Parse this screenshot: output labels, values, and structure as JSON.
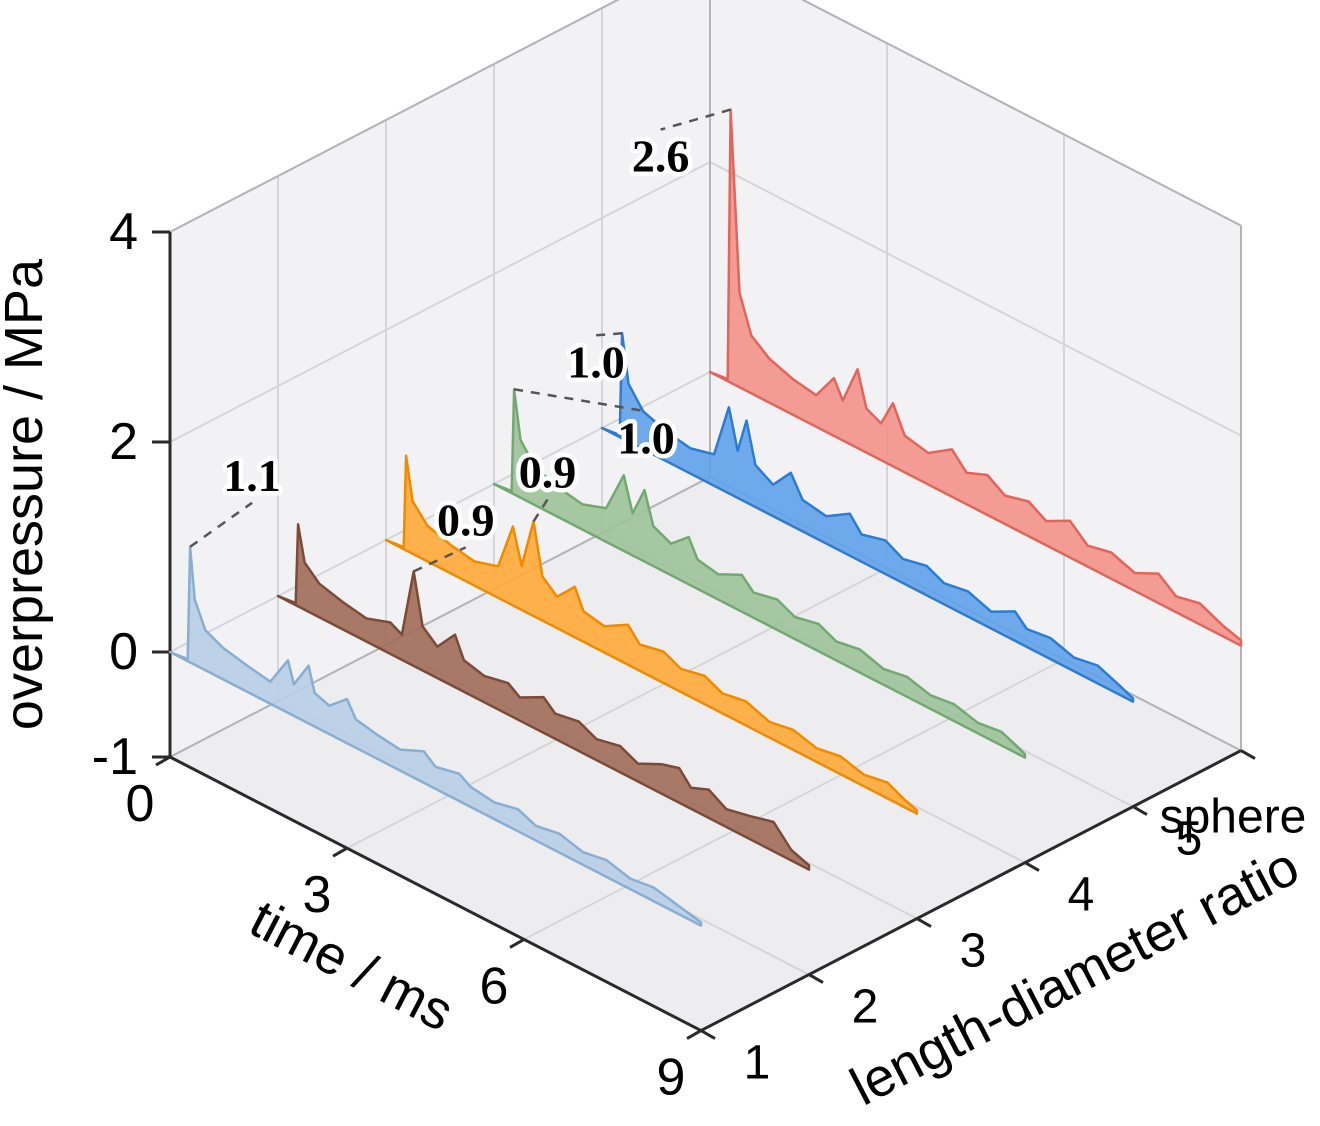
{
  "chart_data": {
    "type": "line",
    "subtype": "3d-waterfall-overpressure-traces",
    "title": "",
    "xlabel": "time / ms",
    "ylabel": "length-diameter ratio",
    "zlabel": "overpressure / MPa",
    "x_ticks": [
      "0",
      "3",
      "6",
      "9"
    ],
    "x_tick_values": [
      0,
      3,
      6,
      9
    ],
    "x_range": [
      0,
      9
    ],
    "y_tick_labels": [
      "1",
      "2",
      "3",
      "4",
      "5",
      "sphere"
    ],
    "z_ticks": [
      "-1",
      "0",
      "2",
      "4"
    ],
    "z_tick_values": [
      -1,
      0,
      2,
      4
    ],
    "z_range": [
      -1,
      4
    ],
    "grid": true,
    "legend": "none",
    "colors": {
      "pane_wall": "#f2f2f4",
      "pane_floor": "#ededf0",
      "grid": "#d6d6da",
      "box_edge": "#b3b3b8",
      "spine": "#2a2a2a",
      "annotation_line": "#555555",
      "text": "#000000"
    },
    "series": [
      {
        "name": "1",
        "peak_label": "1.1",
        "color_fill": "#b7cde6",
        "color_edge": "#89aed2",
        "points": [
          [
            0,
            0
          ],
          [
            0.3,
            0.02
          ],
          [
            0.34,
            1.1
          ],
          [
            0.42,
            0.62
          ],
          [
            0.6,
            0.38
          ],
          [
            0.9,
            0.3
          ],
          [
            1.3,
            0.25
          ],
          [
            1.7,
            0.21
          ],
          [
            2,
            0.5
          ],
          [
            2.1,
            0.3
          ],
          [
            2.35,
            0.55
          ],
          [
            2.45,
            0.32
          ],
          [
            2.7,
            0.27
          ],
          [
            3,
            0.42
          ],
          [
            3.15,
            0.27
          ],
          [
            3.5,
            0.23
          ],
          [
            3.9,
            0.2
          ],
          [
            4.3,
            0.3
          ],
          [
            4.5,
            0.21
          ],
          [
            4.9,
            0.26
          ],
          [
            5.1,
            0.19
          ],
          [
            5.5,
            0.16
          ],
          [
            5.9,
            0.21
          ],
          [
            6.2,
            0.14
          ],
          [
            6.6,
            0.18
          ],
          [
            7,
            0.12
          ],
          [
            7.4,
            0.16
          ],
          [
            7.8,
            0.1
          ],
          [
            8.2,
            0.13
          ],
          [
            8.6,
            0.08
          ],
          [
            9,
            0.03
          ]
        ]
      },
      {
        "name": "2",
        "peak_label": "0.9",
        "color_fill": "#a06b58",
        "color_edge": "#7c4a38",
        "points": [
          [
            0,
            0
          ],
          [
            0.3,
            0.02
          ],
          [
            0.34,
            0.78
          ],
          [
            0.45,
            0.45
          ],
          [
            0.7,
            0.32
          ],
          [
            1.1,
            0.26
          ],
          [
            1.5,
            0.22
          ],
          [
            1.9,
            0.3
          ],
          [
            2.1,
            0.24
          ],
          [
            2.3,
            0.9
          ],
          [
            2.45,
            0.42
          ],
          [
            2.7,
            0.3
          ],
          [
            3,
            0.5
          ],
          [
            3.15,
            0.3
          ],
          [
            3.5,
            0.25
          ],
          [
            3.9,
            0.3
          ],
          [
            4.1,
            0.22
          ],
          [
            4.5,
            0.34
          ],
          [
            4.7,
            0.24
          ],
          [
            5.1,
            0.28
          ],
          [
            5.4,
            0.2
          ],
          [
            5.8,
            0.25
          ],
          [
            6.1,
            0.17
          ],
          [
            6.5,
            0.28
          ],
          [
            6.8,
            0.33
          ],
          [
            7,
            0.2
          ],
          [
            7.3,
            0.27
          ],
          [
            7.6,
            0.17
          ],
          [
            8,
            0.22
          ],
          [
            8.4,
            0.28
          ],
          [
            8.7,
            0.1
          ],
          [
            9,
            0.04
          ]
        ]
      },
      {
        "name": "3",
        "peak_label": "0.9",
        "color_fill": "#ffaa38",
        "color_edge": "#ef8b00",
        "points": [
          [
            0,
            0
          ],
          [
            0.3,
            0.02
          ],
          [
            0.34,
            0.9
          ],
          [
            0.45,
            0.5
          ],
          [
            0.7,
            0.34
          ],
          [
            1.1,
            0.27
          ],
          [
            1.5,
            0.23
          ],
          [
            1.9,
            0.3
          ],
          [
            2.15,
            0.75
          ],
          [
            2.3,
            0.42
          ],
          [
            2.5,
            0.9
          ],
          [
            2.65,
            0.42
          ],
          [
            2.9,
            0.3
          ],
          [
            3.2,
            0.48
          ],
          [
            3.35,
            0.29
          ],
          [
            3.7,
            0.25
          ],
          [
            4.1,
            0.38
          ],
          [
            4.3,
            0.25
          ],
          [
            4.7,
            0.3
          ],
          [
            5,
            0.22
          ],
          [
            5.4,
            0.27
          ],
          [
            5.7,
            0.19
          ],
          [
            6.1,
            0.23
          ],
          [
            6.5,
            0.15
          ],
          [
            6.9,
            0.19
          ],
          [
            7.3,
            0.13
          ],
          [
            7.7,
            0.17
          ],
          [
            8.1,
            0.11
          ],
          [
            8.5,
            0.15
          ],
          [
            8.8,
            0.07
          ],
          [
            9,
            0.03
          ]
        ]
      },
      {
        "name": "4",
        "peak_label": "1.0",
        "color_fill": "#9cc39a",
        "color_edge": "#74a872",
        "points": [
          [
            0,
            0
          ],
          [
            0.3,
            0.02
          ],
          [
            0.34,
            1
          ],
          [
            0.45,
            0.55
          ],
          [
            0.7,
            0.36
          ],
          [
            1.1,
            0.28
          ],
          [
            1.5,
            0.24
          ],
          [
            1.9,
            0.32
          ],
          [
            2.2,
            0.72
          ],
          [
            2.35,
            0.4
          ],
          [
            2.55,
            0.68
          ],
          [
            2.7,
            0.38
          ],
          [
            3,
            0.3
          ],
          [
            3.3,
            0.45
          ],
          [
            3.45,
            0.28
          ],
          [
            3.8,
            0.24
          ],
          [
            4.2,
            0.35
          ],
          [
            4.4,
            0.24
          ],
          [
            4.8,
            0.29
          ],
          [
            5.1,
            0.21
          ],
          [
            5.5,
            0.26
          ],
          [
            5.8,
            0.18
          ],
          [
            6.2,
            0.22
          ],
          [
            6.6,
            0.15
          ],
          [
            7,
            0.19
          ],
          [
            7.4,
            0.13
          ],
          [
            7.8,
            0.16
          ],
          [
            8.2,
            0.1
          ],
          [
            8.6,
            0.13
          ],
          [
            8.9,
            0.06
          ],
          [
            9,
            0.03
          ]
        ]
      },
      {
        "name": "5",
        "peak_label": "1.0",
        "color_fill": "#5fa2ea",
        "color_edge": "#2d7cd2",
        "points": [
          [
            0,
            0
          ],
          [
            0.3,
            0.02
          ],
          [
            0.34,
            1
          ],
          [
            0.45,
            0.55
          ],
          [
            0.7,
            0.36
          ],
          [
            1.1,
            0.28
          ],
          [
            1.5,
            0.24
          ],
          [
            1.9,
            0.3
          ],
          [
            2.15,
            0.82
          ],
          [
            2.3,
            0.45
          ],
          [
            2.45,
            0.78
          ],
          [
            2.6,
            0.4
          ],
          [
            2.9,
            0.3
          ],
          [
            3.2,
            0.5
          ],
          [
            3.4,
            0.3
          ],
          [
            3.8,
            0.26
          ],
          [
            4.2,
            0.4
          ],
          [
            4.4,
            0.26
          ],
          [
            4.8,
            0.32
          ],
          [
            5.1,
            0.23
          ],
          [
            5.5,
            0.28
          ],
          [
            5.8,
            0.2
          ],
          [
            6.2,
            0.24
          ],
          [
            6.6,
            0.16
          ],
          [
            7,
            0.28
          ],
          [
            7.2,
            0.17
          ],
          [
            7.6,
            0.2
          ],
          [
            8,
            0.13
          ],
          [
            8.4,
            0.17
          ],
          [
            8.8,
            0.08
          ],
          [
            9,
            0.03
          ]
        ]
      },
      {
        "name": "sphere",
        "peak_label": "2.6",
        "color_fill": "#f29289",
        "color_edge": "#e2655c",
        "points": [
          [
            0,
            0
          ],
          [
            0.3,
            0.02
          ],
          [
            0.35,
            2.6
          ],
          [
            0.5,
            0.9
          ],
          [
            0.7,
            0.55
          ],
          [
            1,
            0.42
          ],
          [
            1.4,
            0.34
          ],
          [
            1.8,
            0.3
          ],
          [
            2.1,
            0.55
          ],
          [
            2.25,
            0.38
          ],
          [
            2.5,
            0.75
          ],
          [
            2.65,
            0.42
          ],
          [
            2.9,
            0.35
          ],
          [
            3.1,
            0.6
          ],
          [
            3.3,
            0.35
          ],
          [
            3.7,
            0.3
          ],
          [
            4.1,
            0.45
          ],
          [
            4.35,
            0.3
          ],
          [
            4.7,
            0.38
          ],
          [
            5,
            0.27
          ],
          [
            5.4,
            0.33
          ],
          [
            5.7,
            0.23
          ],
          [
            6.1,
            0.35
          ],
          [
            6.4,
            0.2
          ],
          [
            6.8,
            0.25
          ],
          [
            7.2,
            0.17
          ],
          [
            7.6,
            0.28
          ],
          [
            7.9,
            0.15
          ],
          [
            8.3,
            0.2
          ],
          [
            8.7,
            0.1
          ],
          [
            9,
            0.05
          ]
        ]
      }
    ],
    "annotations": [
      {
        "text": "1.1",
        "series_index": 0,
        "target": [
          0.34,
          1.1
        ],
        "label_offset": [
          62,
          -56
        ]
      },
      {
        "text": "0.9",
        "series_index": 1,
        "target": [
          2.3,
          0.9
        ],
        "label_offset": [
          52,
          -36
        ]
      },
      {
        "text": "0.9",
        "series_index": 2,
        "target": [
          2.5,
          0.9
        ],
        "label_offset": [
          14,
          -34
        ]
      },
      {
        "text": "1.0",
        "series_index": 3,
        "target": [
          0.34,
          1.0
        ],
        "label_offset": [
          132,
          64
        ]
      },
      {
        "text": "1.0",
        "series_index": 4,
        "target": [
          0.34,
          1.0
        ],
        "label_offset": [
          -26,
          44
        ]
      },
      {
        "text": "2.6",
        "series_index": 5,
        "target": [
          0.35,
          2.6
        ],
        "label_offset": [
          -70,
          62
        ]
      }
    ]
  }
}
